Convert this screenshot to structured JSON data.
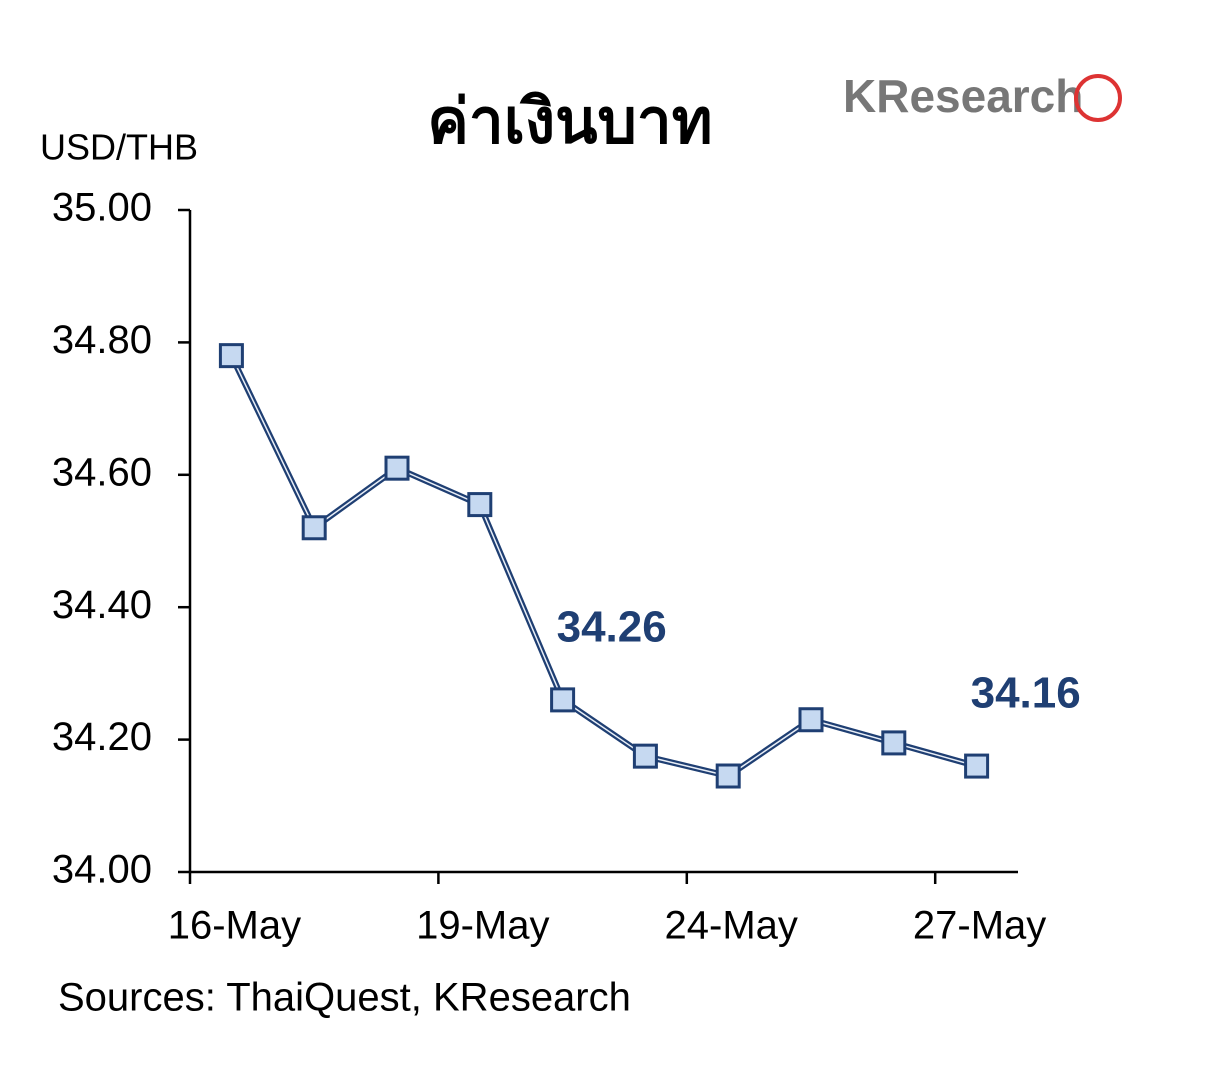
{
  "chart_data": {
    "type": "line",
    "title": "ค่าเงินบาท",
    "logo": "KResearch",
    "y_label": "USD/THB",
    "source": "Sources: ThaiQuest, KResearch",
    "categories": [
      "16-May",
      null,
      null,
      "19-May",
      null,
      null,
      "24-May",
      null,
      null,
      "27-May"
    ],
    "series": [
      {
        "name": "USD/THB",
        "color": "#1f3f73",
        "values": [
          34.78,
          34.52,
          34.61,
          34.555,
          34.26,
          34.175,
          34.145,
          34.23,
          34.195,
          34.16
        ],
        "value_labels": [
          null,
          null,
          null,
          null,
          "34.26",
          null,
          null,
          null,
          null,
          "34.16"
        ]
      }
    ],
    "ylim": [
      34.0,
      35.0
    ],
    "yticks": [
      {
        "value": 34.0,
        "label": "34.00"
      },
      {
        "value": 34.2,
        "label": "34.20"
      },
      {
        "value": 34.4,
        "label": "34.40"
      },
      {
        "value": 34.6,
        "label": "34.60"
      },
      {
        "value": 34.8,
        "label": "34.80"
      },
      {
        "value": 35.0,
        "label": "35.00"
      }
    ],
    "grid": false
  }
}
